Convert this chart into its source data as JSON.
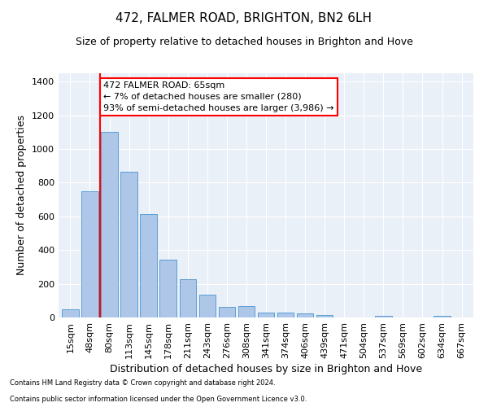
{
  "title": "472, FALMER ROAD, BRIGHTON, BN2 6LH",
  "subtitle": "Size of property relative to detached houses in Brighton and Hove",
  "xlabel": "Distribution of detached houses by size in Brighton and Hove",
  "ylabel": "Number of detached properties",
  "footnote1": "Contains HM Land Registry data © Crown copyright and database right 2024.",
  "footnote2": "Contains public sector information licensed under the Open Government Licence v3.0.",
  "bar_labels": [
    "15sqm",
    "48sqm",
    "80sqm",
    "113sqm",
    "145sqm",
    "178sqm",
    "211sqm",
    "243sqm",
    "276sqm",
    "308sqm",
    "341sqm",
    "374sqm",
    "406sqm",
    "439sqm",
    "471sqm",
    "504sqm",
    "537sqm",
    "569sqm",
    "602sqm",
    "634sqm",
    "667sqm"
  ],
  "bar_values": [
    50,
    750,
    1100,
    865,
    615,
    345,
    225,
    135,
    65,
    70,
    30,
    30,
    22,
    15,
    0,
    0,
    12,
    0,
    0,
    12,
    0
  ],
  "bar_color": "#aec6e8",
  "bar_edge_color": "#5a9fd4",
  "vline_x": 1.5,
  "vline_color": "red",
  "annotation_text": "472 FALMER ROAD: 65sqm\n← 7% of detached houses are smaller (280)\n93% of semi-detached houses are larger (3,986) →",
  "annotation_box_color": "white",
  "annotation_box_edge_color": "red",
  "ylim": [
    0,
    1450
  ],
  "yticks": [
    0,
    200,
    400,
    600,
    800,
    1000,
    1200,
    1400
  ],
  "plot_bg_color": "#eaf0f8",
  "title_fontsize": 11,
  "subtitle_fontsize": 9,
  "xlabel_fontsize": 9,
  "ylabel_fontsize": 9,
  "tick_fontsize": 8,
  "footnote_fontsize": 6,
  "annot_fontsize": 8
}
